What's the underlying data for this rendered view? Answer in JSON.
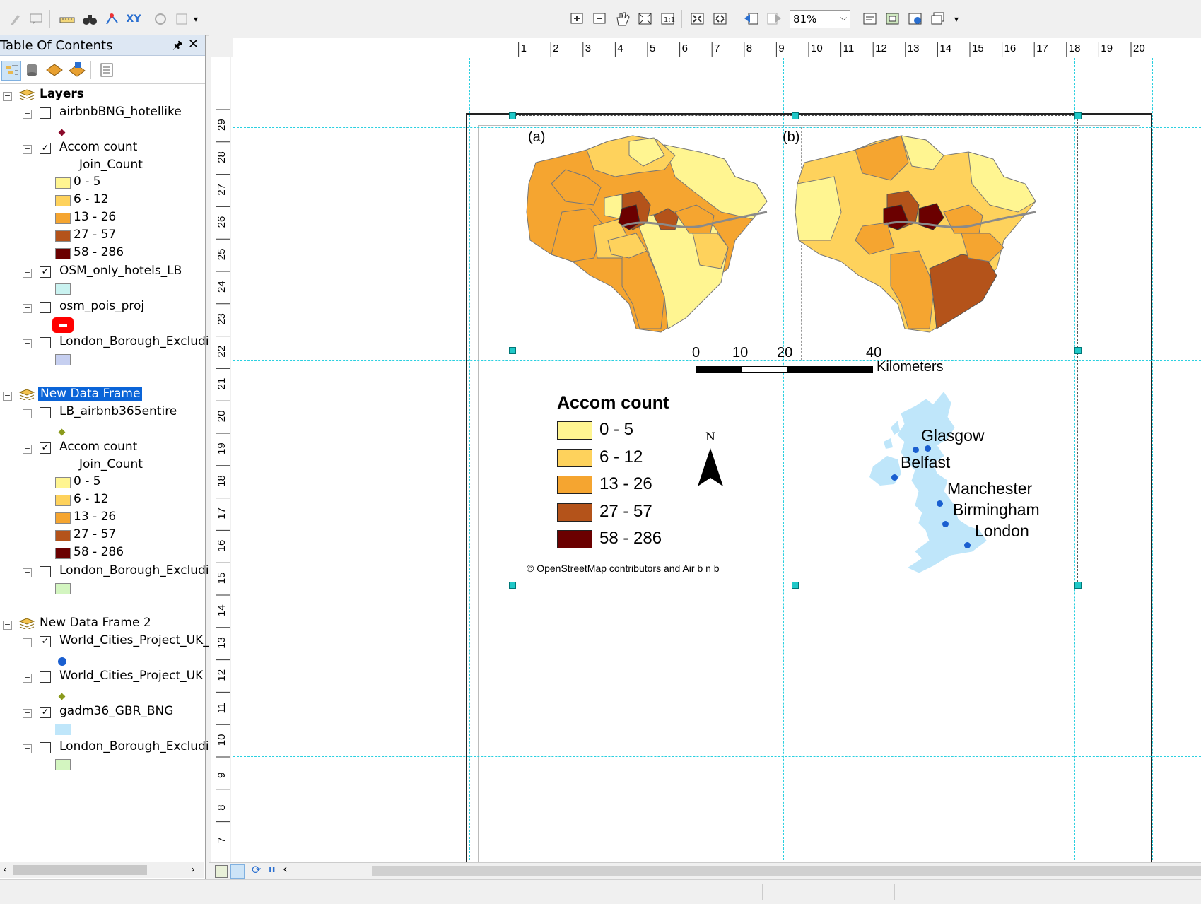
{
  "toolbar": {
    "zoom_value": "81%",
    "tools": [
      "zoom-in-icon",
      "zoom-out-icon",
      "pan-icon",
      "full-extent-icon",
      "fixed-zoom-icon",
      "zoom-whole-page-icon",
      "zoom-100-icon",
      "go-back-icon",
      "go-forward-icon"
    ]
  },
  "toc": {
    "title": "Table Of Contents",
    "frames": [
      {
        "name": "Layers",
        "layers": [
          {
            "name": "airbnbBNG_hotellike",
            "checked": false,
            "symbol": "diamond",
            "color": "#8b0a2a"
          },
          {
            "name": "Accom count",
            "checked": true,
            "field": "Join_Count",
            "classes": [
              {
                "label": "0 - 5",
                "color": "#fff591"
              },
              {
                "label": "6 - 12",
                "color": "#fed25c"
              },
              {
                "label": "13 - 26",
                "color": "#f5a530"
              },
              {
                "label": "27 - 57",
                "color": "#b4531a"
              },
              {
                "label": "58 - 286",
                "color": "#6b0000"
              }
            ]
          },
          {
            "name": "OSM_only_hotels_LB",
            "checked": true,
            "symbol": "fill",
            "color": "#c9f2f0"
          },
          {
            "name": "osm_pois_proj",
            "checked": false,
            "symbol": "red-badge",
            "color": "#ff0000"
          },
          {
            "name": "London_Borough_Excludi",
            "checked": false,
            "symbol": "fill",
            "color": "#c6cff0"
          }
        ]
      },
      {
        "name": "New Data Frame",
        "selected": true,
        "layers": [
          {
            "name": "LB_airbnb365entire",
            "checked": false,
            "symbol": "diamond",
            "color": "#8a9a1c"
          },
          {
            "name": "Accom count",
            "checked": true,
            "field": "Join_Count",
            "classes": [
              {
                "label": "0 - 5",
                "color": "#fff591"
              },
              {
                "label": "6 - 12",
                "color": "#fed25c"
              },
              {
                "label": "13 - 26",
                "color": "#f5a530"
              },
              {
                "label": "27 - 57",
                "color": "#b4531a"
              },
              {
                "label": "58 - 286",
                "color": "#6b0000"
              }
            ]
          },
          {
            "name": "London_Borough_Excludi",
            "checked": false,
            "symbol": "fill",
            "color": "#d3f5c0"
          }
        ]
      },
      {
        "name": "New Data Frame 2",
        "layers": [
          {
            "name": "World_Cities_Project_UK_",
            "checked": true,
            "symbol": "dot",
            "color": "#1a5fd0"
          },
          {
            "name": "World_Cities_Project_UK",
            "checked": false,
            "symbol": "diamond",
            "color": "#8a9a1c"
          },
          {
            "name": "gadm36_GBR_BNG",
            "checked": true,
            "symbol": "fill",
            "color": "#bfe6fa"
          },
          {
            "name": "London_Borough_Excludi",
            "checked": false,
            "symbol": "fill",
            "color": "#d3f5c0"
          }
        ]
      }
    ]
  },
  "ruler": {
    "h_ticks": [
      "1",
      "2",
      "3",
      "4",
      "5",
      "6",
      "7",
      "8",
      "9",
      "10",
      "11",
      "12",
      "13",
      "14",
      "15",
      "16",
      "17",
      "18",
      "19",
      "20"
    ],
    "v_ticks": [
      "29",
      "28",
      "27",
      "26",
      "25",
      "24",
      "23",
      "22",
      "21",
      "20",
      "19",
      "18",
      "17",
      "16",
      "15",
      "14",
      "13",
      "12",
      "11",
      "10",
      "9",
      "8",
      "7"
    ]
  },
  "layout": {
    "panel_a_label": "(a)",
    "panel_b_label": "(b)",
    "scalebar": {
      "ticks": [
        "0",
        "10",
        "20",
        "40"
      ],
      "unit": "Kilometers"
    },
    "legend_title": "Accom count",
    "legend_items": [
      {
        "label": "0 - 5",
        "color": "#fff591"
      },
      {
        "label": "6 - 12",
        "color": "#fed25c"
      },
      {
        "label": "13 - 26",
        "color": "#f5a530"
      },
      {
        "label": "27 - 57",
        "color": "#b4531a"
      },
      {
        "label": "58 - 286",
        "color": "#6b0000"
      }
    ],
    "north_label": "N",
    "credit": "© OpenStreetMap contributors  and Air b n b",
    "cities": [
      "Glasgow",
      "Belfast",
      "Manchester",
      "Birmingham",
      "London"
    ]
  }
}
